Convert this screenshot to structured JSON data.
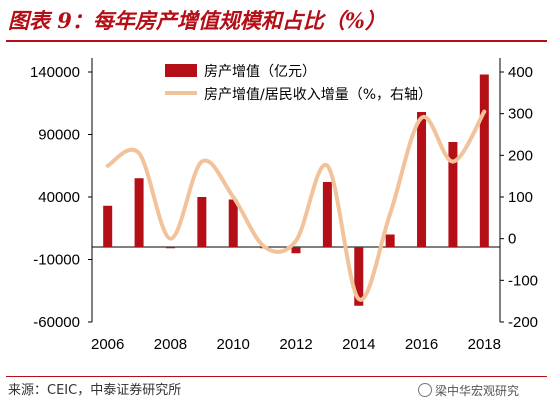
{
  "header": {
    "title": "图表 9：每年房产增值规模和占比（%）"
  },
  "footer": {
    "source": "来源：CEIC，中泰证券研究所",
    "watermark": "梁中华宏观研究"
  },
  "colors": {
    "bar": "#b40f17",
    "line": "#f2c29a",
    "title": "#b40f17"
  },
  "chart_data": {
    "type": "bar",
    "x": [
      2006,
      2007,
      2008,
      2009,
      2010,
      2011,
      2012,
      2013,
      2014,
      2015,
      2016,
      2017,
      2018
    ],
    "x_tick_labels": [
      "2006",
      "2008",
      "2010",
      "2012",
      "2014",
      "2016",
      "2018"
    ],
    "series": [
      {
        "name": "房产增值（亿元）",
        "type": "bar",
        "axis": "left",
        "values": [
          33000,
          55000,
          -1000,
          40000,
          38000,
          -1000,
          -5000,
          52000,
          -47000,
          10000,
          108000,
          84000,
          138000
        ]
      },
      {
        "name": "房产增值/居民收入增量（%，右轴）",
        "type": "line",
        "axis": "right",
        "smooth": true,
        "values": [
          175,
          205,
          0,
          185,
          100,
          -20,
          -5,
          175,
          -145,
          60,
          290,
          185,
          305
        ]
      }
    ],
    "y_left": {
      "ticks": [
        "140000",
        "90000",
        "40000",
        "-10000",
        "-60000"
      ],
      "tick_values": [
        140000,
        90000,
        40000,
        -10000,
        -60000
      ],
      "ylim": [
        -60000,
        140000
      ]
    },
    "y_right": {
      "ticks": [
        "400",
        "300",
        "200",
        "100",
        "0",
        "-100",
        "-200"
      ],
      "tick_values": [
        400,
        300,
        200,
        100,
        0,
        -100,
        -200
      ],
      "ylim": [
        -200,
        400
      ]
    },
    "legend": {
      "position": "top-center"
    },
    "grid": false
  }
}
